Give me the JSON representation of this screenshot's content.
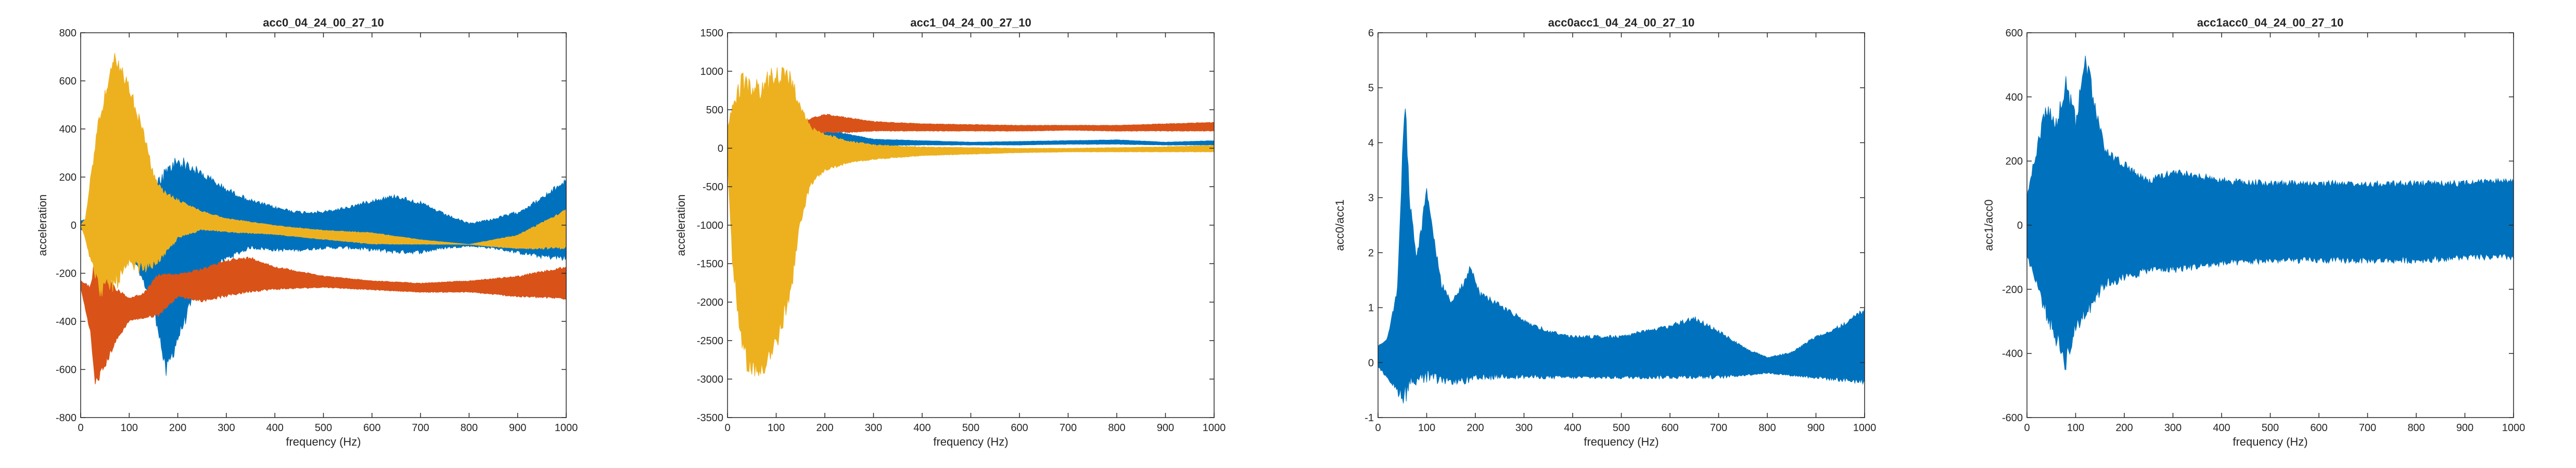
{
  "colors": {
    "blue": "#0072BD",
    "orange": "#D95319",
    "yellow": "#EDB120",
    "axis": "#262626"
  },
  "chart_data": [
    {
      "type": "area",
      "title": "acc0_04_24_00_27_10",
      "xlabel": "frequency (Hz)",
      "ylabel": "acceleration",
      "xlim": [
        0,
        1000
      ],
      "ylim": [
        -800,
        800
      ],
      "xticks": [
        0,
        100,
        200,
        300,
        400,
        500,
        600,
        700,
        800,
        900,
        1000
      ],
      "yticks": [
        -800,
        -600,
        -400,
        -200,
        0,
        200,
        400,
        600,
        800
      ],
      "grid": false,
      "series": [
        {
          "color": "#0072BD",
          "x": [
            0,
            20,
            50,
            100,
            140,
            160,
            175,
            200,
            250,
            300,
            350,
            400,
            450,
            500,
            550,
            600,
            650,
            700,
            750,
            800,
            850,
            900,
            950,
            1000
          ],
          "upper": [
            20,
            30,
            20,
            30,
            80,
            200,
            250,
            300,
            230,
            160,
            110,
            80,
            60,
            60,
            80,
            110,
            130,
            100,
            50,
            10,
            30,
            60,
            120,
            200
          ],
          "lower": [
            -20,
            -40,
            -60,
            -100,
            -300,
            -450,
            -650,
            -500,
            -230,
            -150,
            -100,
            -110,
            -110,
            -100,
            -100,
            -110,
            -120,
            -120,
            -100,
            -90,
            -100,
            -120,
            -140,
            -150
          ]
        },
        {
          "color": "#D95319",
          "x": [
            0,
            20,
            30,
            50,
            70,
            100,
            130,
            160,
            200,
            250,
            300,
            350,
            400,
            500,
            600,
            700,
            800,
            900,
            1000
          ],
          "upper": [
            -230,
            -250,
            -120,
            -180,
            -250,
            -300,
            -280,
            -200,
            -200,
            -180,
            -140,
            -130,
            -170,
            -210,
            -230,
            -240,
            -230,
            -210,
            -170
          ],
          "lower": [
            -260,
            -450,
            -680,
            -600,
            -500,
            -400,
            -390,
            -380,
            -300,
            -320,
            -300,
            -280,
            -270,
            -260,
            -270,
            -280,
            -280,
            -300,
            -310
          ]
        },
        {
          "color": "#EDB120",
          "x": [
            0,
            10,
            20,
            40,
            70,
            100,
            130,
            150,
            170,
            200,
            250,
            300,
            400,
            500,
            600,
            700,
            800,
            900,
            1000
          ],
          "upper": [
            0,
            30,
            200,
            500,
            720,
            600,
            400,
            220,
            150,
            110,
            60,
            30,
            0,
            -20,
            -30,
            -60,
            -80,
            -40,
            70
          ],
          "lower": [
            0,
            -60,
            -150,
            -300,
            -280,
            -200,
            -200,
            -180,
            -140,
            -60,
            -20,
            -30,
            -40,
            -60,
            -80,
            -80,
            -80,
            -100,
            -100
          ]
        }
      ]
    },
    {
      "type": "area",
      "title": "acc1_04_24_00_27_10",
      "xlabel": "frequency (Hz)",
      "ylabel": "acceleration",
      "xlim": [
        0,
        1000
      ],
      "ylim": [
        -3500,
        1500
      ],
      "xticks": [
        0,
        100,
        200,
        300,
        400,
        500,
        600,
        700,
        800,
        900,
        1000
      ],
      "yticks": [
        -3500,
        -3000,
        -2500,
        -2000,
        -1500,
        -1000,
        -500,
        0,
        500,
        1000,
        1500
      ],
      "grid": false,
      "series": [
        {
          "color": "#0072BD",
          "x": [
            0,
            50,
            100,
            150,
            200,
            300,
            400,
            500,
            600,
            700,
            800,
            900,
            1000
          ],
          "upper": [
            300,
            500,
            600,
            400,
            250,
            120,
            100,
            80,
            90,
            100,
            110,
            80,
            100
          ],
          "lower": [
            -200,
            -400,
            -300,
            -150,
            0,
            30,
            40,
            40,
            40,
            50,
            50,
            40,
            40
          ]
        },
        {
          "color": "#D95319",
          "x": [
            0,
            50,
            100,
            150,
            200,
            250,
            300,
            400,
            500,
            600,
            700,
            800,
            900,
            1000
          ],
          "upper": [
            300,
            400,
            400,
            350,
            450,
            400,
            350,
            320,
            310,
            300,
            300,
            300,
            320,
            340
          ],
          "lower": [
            200,
            150,
            150,
            150,
            200,
            200,
            220,
            220,
            220,
            220,
            230,
            220,
            220,
            220
          ]
        },
        {
          "color": "#EDB120",
          "x": [
            0,
            10,
            30,
            60,
            100,
            130,
            150,
            170,
            200,
            250,
            300,
            400,
            500,
            600,
            700,
            800,
            900,
            1000
          ],
          "upper": [
            300,
            600,
            1000,
            900,
            1100,
            1000,
            600,
            300,
            200,
            100,
            50,
            20,
            10,
            0,
            0,
            10,
            20,
            40
          ],
          "lower": [
            -200,
            -1500,
            -2800,
            -3100,
            -2700,
            -2000,
            -1000,
            -500,
            -300,
            -200,
            -150,
            -100,
            -80,
            -60,
            -50,
            -50,
            -50,
            -50
          ]
        }
      ]
    },
    {
      "type": "area",
      "title": "acc0acc1_04_24_00_27_10",
      "xlabel": "frequency (Hz)",
      "ylabel": "acc0/acc1",
      "xlim": [
        0,
        1000
      ],
      "ylim": [
        -1,
        6
      ],
      "xticks": [
        0,
        100,
        200,
        300,
        400,
        500,
        600,
        700,
        800,
        900,
        1000
      ],
      "yticks": [
        -1,
        0,
        1,
        2,
        3,
        4,
        5,
        6
      ],
      "grid": false,
      "series": [
        {
          "color": "#0072BD",
          "x": [
            0,
            20,
            40,
            55,
            65,
            80,
            100,
            130,
            150,
            170,
            190,
            210,
            250,
            300,
            350,
            400,
            450,
            500,
            550,
            600,
            650,
            700,
            750,
            800,
            850,
            900,
            950,
            1000
          ],
          "upper": [
            0.3,
            0.5,
            1.4,
            5.1,
            3.0,
            2.0,
            3.2,
            1.5,
            1.2,
            1.4,
            1.8,
            1.3,
            1.1,
            0.8,
            0.6,
            0.5,
            0.5,
            0.5,
            0.6,
            0.7,
            0.85,
            0.6,
            0.3,
            0.1,
            0.2,
            0.5,
            0.7,
            1.0
          ],
          "lower": [
            -0.1,
            -0.3,
            -0.6,
            -0.8,
            -0.5,
            -0.4,
            -0.4,
            -0.4,
            -0.4,
            -0.4,
            -0.4,
            -0.35,
            -0.3,
            -0.3,
            -0.3,
            -0.3,
            -0.3,
            -0.3,
            -0.3,
            -0.3,
            -0.3,
            -0.3,
            -0.25,
            -0.2,
            -0.25,
            -0.3,
            -0.35,
            -0.4
          ]
        }
      ]
    },
    {
      "type": "area",
      "title": "acc1acc0_04_24_00_27_10",
      "xlabel": "frequency (Hz)",
      "ylabel": "acc1/acc0",
      "xlim": [
        0,
        1000
      ],
      "ylim": [
        -600,
        600
      ],
      "xticks": [
        0,
        100,
        200,
        300,
        400,
        500,
        600,
        700,
        800,
        900,
        1000
      ],
      "yticks": [
        -600,
        -400,
        -200,
        0,
        200,
        400,
        600
      ],
      "grid": false,
      "series": [
        {
          "color": "#0072BD",
          "x": [
            0,
            20,
            40,
            60,
            80,
            100,
            120,
            140,
            160,
            200,
            250,
            300,
            400,
            500,
            600,
            700,
            800,
            900,
            1000
          ],
          "upper": [
            100,
            250,
            400,
            350,
            480,
            350,
            550,
            400,
            250,
            200,
            150,
            180,
            150,
            140,
            140,
            140,
            140,
            140,
            150
          ],
          "lower": [
            -100,
            -200,
            -300,
            -380,
            -460,
            -350,
            -300,
            -250,
            -200,
            -180,
            -150,
            -150,
            -130,
            -120,
            -120,
            -120,
            -120,
            -110,
            -110
          ]
        }
      ]
    }
  ]
}
